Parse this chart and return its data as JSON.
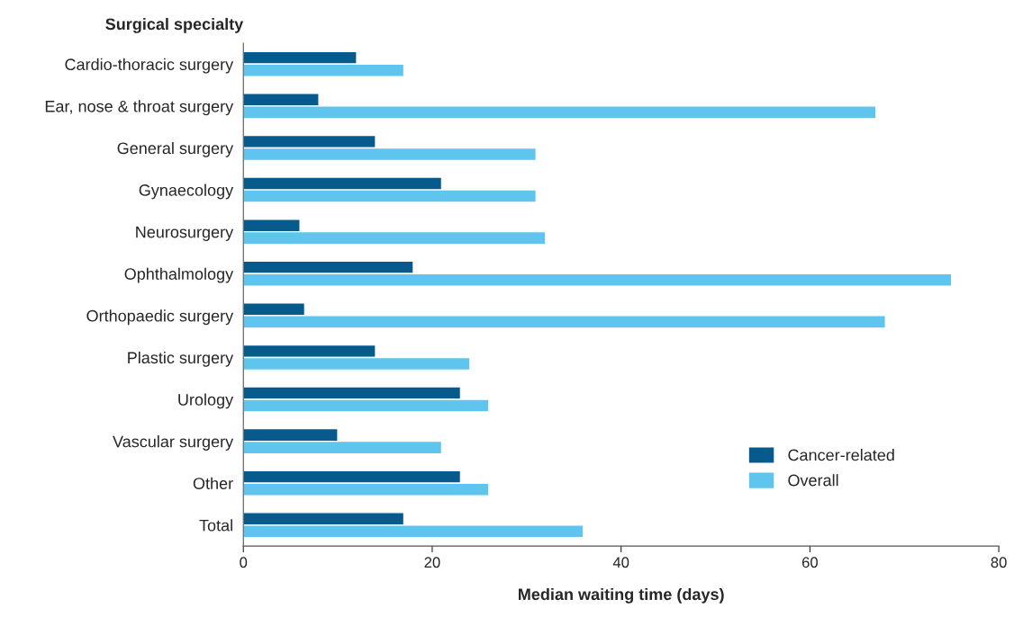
{
  "chart_data": {
    "type": "bar",
    "orientation": "horizontal",
    "ylabel": "Surgical specialty",
    "xlabel": "Median waiting time (days)",
    "categories": [
      "Cardio-thoracic surgery",
      "Ear, nose & throat surgery",
      "General surgery",
      "Gynaecology",
      "Neurosurgery",
      "Ophthalmology",
      "Orthopaedic surgery",
      "Plastic surgery",
      "Urology",
      "Vascular surgery",
      "Other",
      "Total"
    ],
    "series": [
      {
        "name": "Cancer-related",
        "color": "#065a8c",
        "values": [
          12,
          8,
          14,
          21,
          6,
          18,
          6.5,
          14,
          23,
          10,
          23,
          17
        ]
      },
      {
        "name": "Overall",
        "color": "#5fc4ee",
        "values": [
          17,
          67,
          31,
          31,
          32,
          75,
          68,
          24,
          26,
          21,
          26,
          36
        ]
      }
    ],
    "xlim": [
      0,
      80
    ],
    "xticks": [
      0,
      20,
      40,
      60,
      80
    ],
    "grid": false,
    "legend": "bottom right"
  }
}
